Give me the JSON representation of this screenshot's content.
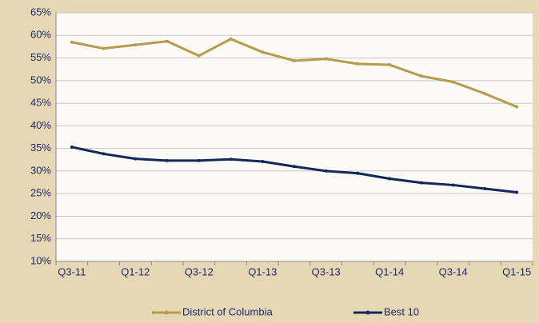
{
  "chart_data": {
    "type": "line",
    "categories": [
      "Q3-11",
      null,
      "Q1-12",
      null,
      "Q3-12",
      null,
      "Q1-13",
      null,
      "Q3-13",
      null,
      "Q1-14",
      null,
      "Q3-14",
      null,
      "Q1-15"
    ],
    "series": [
      {
        "name": "District of Columbia",
        "color": "#b89b4c",
        "values": [
          58.5,
          57.1,
          57.9,
          58.7,
          55.5,
          59.2,
          56.3,
          54.4,
          54.8,
          53.7,
          53.5,
          51.0,
          49.7,
          47.1,
          44.2
        ]
      },
      {
        "name": "Best 10",
        "color": "#14285a",
        "values": [
          35.3,
          33.8,
          32.7,
          32.3,
          32.3,
          32.6,
          32.1,
          31.0,
          30.0,
          29.5,
          28.3,
          27.4,
          26.9,
          26.1,
          25.3
        ]
      }
    ],
    "ylim": [
      10,
      65
    ],
    "yticks": [
      {
        "value": 10,
        "label": "10%"
      },
      {
        "value": 15,
        "label": "15%"
      },
      {
        "value": 20,
        "label": "20%"
      },
      {
        "value": 25,
        "label": "25%"
      },
      {
        "value": 30,
        "label": "30%"
      },
      {
        "value": 35,
        "label": "35%"
      },
      {
        "value": 40,
        "label": "40%"
      },
      {
        "value": 45,
        "label": "45%"
      },
      {
        "value": 50,
        "label": "50%"
      },
      {
        "value": 55,
        "label": "55%"
      },
      {
        "value": 60,
        "label": "60%"
      },
      {
        "value": 65,
        "label": "65%"
      }
    ],
    "grid": true
  }
}
